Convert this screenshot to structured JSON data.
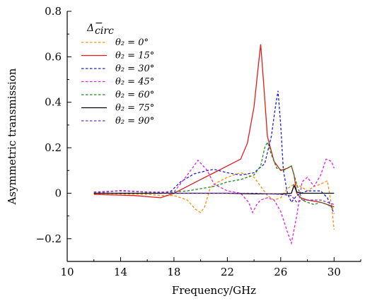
{
  "chart_data": {
    "type": "line",
    "title": "",
    "xlabel": "Frequency/GHz",
    "ylabel": "Asymmetric transmission",
    "xlim": [
      10,
      32
    ],
    "ylim": [
      -0.3,
      0.8
    ],
    "x_ticks": [
      10,
      14,
      18,
      22,
      26,
      30
    ],
    "x_tick_labels": [
      "10",
      "14",
      "18",
      "22",
      "26",
      "30"
    ],
    "y_ticks": [
      -0.2,
      0,
      0.2,
      0.4,
      0.6,
      0.8
    ],
    "y_tick_labels": [
      "−0.2",
      "0",
      "0.2",
      "0.4",
      "0.6",
      "0.8"
    ],
    "legend": {
      "title": "Δ",
      "title_sup": "−",
      "title_sub": "circ",
      "placement": "top-left"
    },
    "series": [
      {
        "name": "θ₂ = 0°",
        "color": "#ff8c00",
        "dash": "dashed",
        "points": [
          [
            12,
            0
          ],
          [
            16,
            -0.005
          ],
          [
            17,
            -0.01
          ],
          [
            18,
            -0.01
          ],
          [
            19,
            -0.03
          ],
          [
            19.6,
            -0.07
          ],
          [
            20,
            -0.085
          ],
          [
            20.3,
            -0.06
          ],
          [
            20.7,
            0.02
          ],
          [
            21,
            0.04
          ],
          [
            22,
            0.07
          ],
          [
            23,
            0.09
          ],
          [
            24,
            0.07
          ],
          [
            24.5,
            0.03
          ],
          [
            25,
            -0.01
          ],
          [
            25.5,
            -0.03
          ],
          [
            26,
            -0.02
          ],
          [
            26.5,
            0.02
          ],
          [
            27,
            0.04
          ],
          [
            27.5,
            0.03
          ],
          [
            28,
            0.01
          ],
          [
            28.5,
            0.03
          ],
          [
            29,
            0.04
          ],
          [
            29.5,
            0.055
          ],
          [
            29.8,
            -0.05
          ],
          [
            30,
            -0.16
          ]
        ]
      },
      {
        "name": "θ₂ = 15°",
        "color": "#e31a1c",
        "dash": "solid",
        "points": [
          [
            12,
            -0.005
          ],
          [
            15,
            -0.01
          ],
          [
            17,
            -0.02
          ],
          [
            18,
            0
          ],
          [
            19,
            0.03
          ],
          [
            20,
            0.06
          ],
          [
            21,
            0.09
          ],
          [
            22,
            0.12
          ],
          [
            23,
            0.15
          ],
          [
            23.5,
            0.22
          ],
          [
            24,
            0.38
          ],
          [
            24.3,
            0.55
          ],
          [
            24.5,
            0.655
          ],
          [
            24.7,
            0.5
          ],
          [
            25,
            0.25
          ],
          [
            25.5,
            0.14
          ],
          [
            26,
            0.1
          ],
          [
            26.5,
            0.11
          ],
          [
            26.8,
            0.12
          ],
          [
            27,
            0.08
          ],
          [
            27.2,
            0.0
          ],
          [
            27.5,
            -0.02
          ],
          [
            28,
            -0.03
          ],
          [
            29,
            -0.04
          ],
          [
            30,
            -0.06
          ]
        ]
      },
      {
        "name": "θ₂ = 30°",
        "color": "#1f1fd0",
        "dash": "dashed",
        "points": [
          [
            12,
            0
          ],
          [
            17,
            0
          ],
          [
            17.8,
            0.01
          ],
          [
            18.5,
            0.05
          ],
          [
            19.5,
            0.085
          ],
          [
            20.5,
            0.1
          ],
          [
            21,
            0.105
          ],
          [
            22,
            0.09
          ],
          [
            23,
            0.08
          ],
          [
            24,
            0.09
          ],
          [
            24.8,
            0.13
          ],
          [
            25.3,
            0.25
          ],
          [
            25.6,
            0.38
          ],
          [
            25.8,
            0.45
          ],
          [
            26,
            0.3
          ],
          [
            26.2,
            0.1
          ],
          [
            26.5,
            0
          ],
          [
            26.8,
            -0.04
          ],
          [
            27.2,
            -0.01
          ],
          [
            27.5,
            0.0
          ],
          [
            28,
            0.01
          ],
          [
            29,
            0.01
          ],
          [
            29.5,
            -0.02
          ],
          [
            30,
            -0.09
          ]
        ]
      },
      {
        "name": "θ₂ = 45°",
        "color": "#e020e0",
        "dash": "dashed",
        "points": [
          [
            12,
            0
          ],
          [
            14,
            0.012
          ],
          [
            16,
            0.005
          ],
          [
            18,
            0.005
          ],
          [
            19,
            0.08
          ],
          [
            19.8,
            0.145
          ],
          [
            20.5,
            0.1
          ],
          [
            21,
            0.04
          ],
          [
            22,
            0.01
          ],
          [
            23,
            0.0
          ],
          [
            23.6,
            -0.04
          ],
          [
            23.9,
            -0.085
          ],
          [
            24.2,
            -0.05
          ],
          [
            24.5,
            -0.03
          ],
          [
            25,
            -0.02
          ],
          [
            25.5,
            -0.03
          ],
          [
            26,
            -0.08
          ],
          [
            26.5,
            -0.17
          ],
          [
            26.8,
            -0.22
          ],
          [
            27.2,
            -0.1
          ],
          [
            27.6,
            0.05
          ],
          [
            28,
            0.07
          ],
          [
            28.5,
            0.03
          ],
          [
            29,
            0.08
          ],
          [
            29.4,
            0.15
          ],
          [
            29.8,
            0.14
          ],
          [
            30,
            0.11
          ]
        ]
      },
      {
        "name": "θ₂ = 60°",
        "color": "#1a8a1a",
        "dash": "dashed",
        "points": [
          [
            12,
            0
          ],
          [
            17,
            0.0
          ],
          [
            18,
            0.005
          ],
          [
            19,
            0.01
          ],
          [
            20,
            0.02
          ],
          [
            21,
            0.03
          ],
          [
            22,
            0.05
          ],
          [
            23,
            0.06
          ],
          [
            24,
            0.08
          ],
          [
            24.5,
            0.12
          ],
          [
            24.8,
            0.2
          ],
          [
            25,
            0.225
          ],
          [
            25.3,
            0.17
          ],
          [
            25.7,
            0.11
          ],
          [
            26.2,
            0.1
          ],
          [
            26.8,
            0.12
          ],
          [
            27.2,
            0.04
          ],
          [
            27.6,
            -0.03
          ],
          [
            28,
            -0.04
          ],
          [
            28.5,
            -0.05
          ],
          [
            29,
            -0.04
          ],
          [
            29.5,
            -0.05
          ],
          [
            30,
            -0.07
          ]
        ]
      },
      {
        "name": "θ₂ = 75°",
        "color": "#000000",
        "dash": "solid",
        "points": [
          [
            12,
            0
          ],
          [
            14,
            0.0
          ],
          [
            16,
            0.0
          ],
          [
            18,
            0.0
          ],
          [
            20,
            0.0
          ],
          [
            22,
            0.0
          ],
          [
            24,
            -0.003
          ],
          [
            26,
            -0.003
          ],
          [
            26.8,
            0.0
          ],
          [
            27,
            0.035
          ],
          [
            27.2,
            0.005
          ],
          [
            27.5,
            0.0
          ],
          [
            28.5,
            0.0
          ],
          [
            30,
            0.0
          ]
        ]
      },
      {
        "name": "θ₂ = 90°",
        "color": "#7b2fbe",
        "dash": "dashed",
        "points": [
          [
            12,
            0.005
          ],
          [
            14,
            0.01
          ],
          [
            16,
            0.005
          ],
          [
            18,
            0.0
          ],
          [
            20,
            0.0
          ],
          [
            22,
            0.0
          ],
          [
            24,
            0.0
          ],
          [
            26,
            -0.005
          ],
          [
            26.8,
            -0.01
          ],
          [
            27.2,
            -0.04
          ],
          [
            27.6,
            -0.03
          ],
          [
            28,
            -0.03
          ],
          [
            29,
            -0.03
          ],
          [
            30,
            -0.05
          ]
        ]
      }
    ]
  }
}
